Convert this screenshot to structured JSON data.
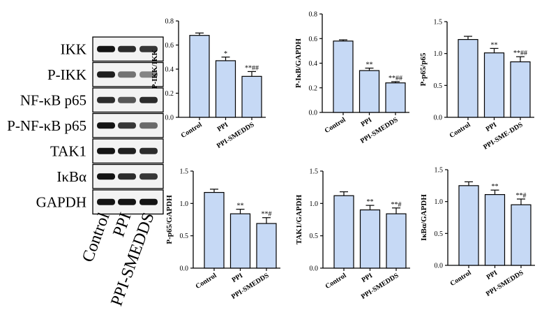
{
  "western_blot": {
    "bands": [
      {
        "label": "IKK",
        "profile": [
          1.0,
          0.9,
          0.85
        ]
      },
      {
        "label": "P-IKK",
        "profile": [
          0.95,
          0.55,
          0.45
        ]
      },
      {
        "label": "NF-κB p65",
        "profile": [
          0.9,
          0.7,
          0.9
        ]
      },
      {
        "label": "P-NF-κB p65",
        "profile": [
          1.0,
          0.85,
          0.6
        ]
      },
      {
        "label": "TAK1",
        "profile": [
          1.0,
          0.95,
          0.9
        ]
      },
      {
        "label": "IκBα",
        "profile": [
          1.0,
          0.9,
          0.85
        ]
      },
      {
        "label": "GAPDH",
        "profile": [
          1.0,
          1.0,
          1.0
        ]
      }
    ],
    "lanes": [
      "Control",
      "PPI",
      "PPI-SMEDDS"
    ]
  },
  "colors": {
    "bar_fill": "#c6d9f5",
    "stroke": "#000000"
  },
  "chart_data": [
    {
      "type": "bar",
      "ylabel": "P-IKK/IKK",
      "categories": [
        "Control",
        "PPI",
        "PPI-SMEDDS"
      ],
      "values": [
        0.68,
        0.47,
        0.34
      ],
      "errors": [
        0.02,
        0.03,
        0.04
      ],
      "annotations": [
        "",
        "*",
        "**##"
      ],
      "ylim": [
        0,
        0.8
      ],
      "yticks": [
        "0.0",
        "0.2",
        "0.4",
        "0.6",
        "0.8"
      ]
    },
    {
      "type": "bar",
      "ylabel": "P-IκB/GAPDH",
      "categories": [
        "Control",
        "PPI",
        "PPI-SMEDDS"
      ],
      "values": [
        0.58,
        0.34,
        0.24
      ],
      "errors": [
        0.01,
        0.02,
        0.01
      ],
      "annotations": [
        "",
        "**",
        "**##"
      ],
      "ylim": [
        0,
        0.8
      ],
      "yticks": [
        "0.0",
        "0.2",
        "0.4",
        "0.6",
        "0.8"
      ]
    },
    {
      "type": "bar",
      "ylabel": "P-p65/p65",
      "categories": [
        "Control",
        "PPI",
        "PPI-SME-DDS"
      ],
      "values": [
        1.22,
        1.01,
        0.87
      ],
      "errors": [
        0.05,
        0.07,
        0.08
      ],
      "annotations": [
        "",
        "**",
        "**##"
      ],
      "ylim": [
        0,
        1.5
      ],
      "yticks": [
        "0.0",
        "0.5",
        "1.0",
        "1.5"
      ]
    },
    {
      "type": "bar",
      "ylabel": "P-p65/GAPDH",
      "categories": [
        "Control",
        "PPI",
        "PPI-SMEDDS"
      ],
      "values": [
        1.17,
        0.84,
        0.69
      ],
      "errors": [
        0.05,
        0.07,
        0.09
      ],
      "annotations": [
        "",
        "**",
        "**#"
      ],
      "ylim": [
        0,
        1.5
      ],
      "yticks": [
        "0.0",
        "0.5",
        "1.0",
        "1.5"
      ]
    },
    {
      "type": "bar",
      "ylabel": "TAK1/GAPDH",
      "categories": [
        "Control",
        "PPI",
        "PPI-SMEDDS"
      ],
      "values": [
        1.12,
        0.9,
        0.84
      ],
      "errors": [
        0.06,
        0.07,
        0.09
      ],
      "annotations": [
        "",
        "**",
        "**#"
      ],
      "ylim": [
        0,
        1.5
      ],
      "yticks": [
        "0.0",
        "0.5",
        "1.0",
        "1.5"
      ]
    },
    {
      "type": "bar",
      "ylabel": "IκBα/GAPDH",
      "categories": [
        "Control",
        "PPI",
        "PPI-SMEDDS"
      ],
      "values": [
        1.25,
        1.11,
        0.95
      ],
      "errors": [
        0.06,
        0.07,
        0.09
      ],
      "annotations": [
        "",
        "**",
        "**#"
      ],
      "ylim": [
        0,
        1.5
      ],
      "yticks": [
        "0.0",
        "0.5",
        "1.0",
        "1.5"
      ]
    }
  ]
}
